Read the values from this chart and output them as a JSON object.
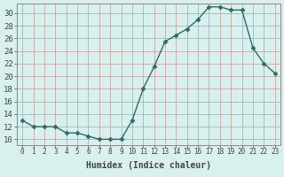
{
  "xlabel": "Humidex (Indice chaleur)",
  "x": [
    0,
    1,
    2,
    3,
    4,
    5,
    6,
    7,
    8,
    9,
    10,
    11,
    12,
    13,
    14,
    15,
    16,
    17,
    18,
    19,
    20,
    21,
    22,
    23
  ],
  "y": [
    13,
    12,
    12,
    12,
    11,
    11,
    10.5,
    10,
    10,
    10,
    13,
    18,
    21.5,
    25.5,
    26.5,
    27.5,
    29,
    31,
    31,
    30.5,
    30.5,
    24.5,
    22,
    20.5
  ],
  "line_color": "#2d6e63",
  "marker": "D",
  "marker_size": 2.5,
  "bg_color": "#d8f0ee",
  "grid_color": "#c8a8a8",
  "tick_color": "#444444",
  "ylim": [
    9,
    31.5
  ],
  "yticks": [
    10,
    12,
    14,
    16,
    18,
    20,
    22,
    24,
    26,
    28,
    30
  ],
  "xlim": [
    -0.5,
    23.5
  ],
  "xlabel_fontsize": 7,
  "tick_fontsize": 5.5,
  "ytick_fontsize": 6.5
}
